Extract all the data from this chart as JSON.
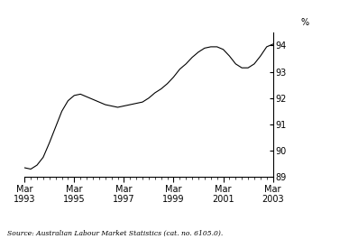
{
  "source_text": "Source: Australian Labour Market Statistics (cat. no. 6105.0).",
  "ylim": [
    89,
    94.5
  ],
  "yticks": [
    89,
    90,
    91,
    92,
    93,
    94
  ],
  "line_color": "#000000",
  "line_width": 0.8,
  "background_color": "#ffffff",
  "x": [
    1993.25,
    1993.5,
    1993.75,
    1994.0,
    1994.25,
    1994.5,
    1994.75,
    1995.0,
    1995.25,
    1995.5,
    1995.75,
    1996.0,
    1996.25,
    1996.5,
    1996.75,
    1997.0,
    1997.25,
    1997.5,
    1997.75,
    1998.0,
    1998.25,
    1998.5,
    1998.75,
    1999.0,
    1999.25,
    1999.5,
    1999.75,
    2000.0,
    2000.25,
    2000.5,
    2000.75,
    2001.0,
    2001.25,
    2001.5,
    2001.75,
    2002.0,
    2002.25,
    2002.5,
    2002.75,
    2003.0,
    2003.25
  ],
  "y": [
    89.35,
    89.3,
    89.45,
    89.75,
    90.3,
    90.9,
    91.5,
    91.9,
    92.1,
    92.15,
    92.05,
    91.95,
    91.85,
    91.75,
    91.7,
    91.65,
    91.7,
    91.75,
    91.8,
    91.85,
    92.0,
    92.2,
    92.35,
    92.55,
    92.8,
    93.1,
    93.3,
    93.55,
    93.75,
    93.9,
    93.95,
    93.95,
    93.85,
    93.6,
    93.3,
    93.15,
    93.15,
    93.3,
    93.6,
    93.95,
    94.05
  ],
  "xtick_major_positions": [
    1993.25,
    1995.25,
    1997.25,
    1999.25,
    2001.25,
    2003.25
  ],
  "xtick_major_labels": [
    "Mar\n1993",
    "Mar\n1995",
    "Mar\n1997",
    "Mar\n1999",
    "Mar\n2001",
    "Mar\n2003"
  ],
  "xlim": [
    1993.25,
    2003.25
  ],
  "percent_label": "%"
}
